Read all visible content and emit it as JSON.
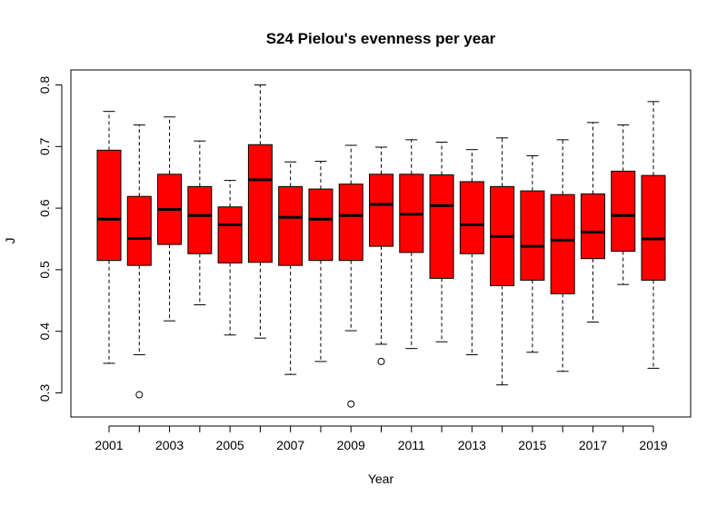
{
  "chart_data": {
    "type": "boxplot",
    "title": "S24 Pielou's evenness per year",
    "xlabel": "Year",
    "ylabel": "J",
    "ylim": [
      0.26,
      0.82
    ],
    "y_ticks": [
      0.3,
      0.4,
      0.5,
      0.6,
      0.7,
      0.8
    ],
    "y_tick_labels": [
      "0.3",
      "0.4",
      "0.5",
      "0.6",
      "0.7",
      "0.8"
    ],
    "x_tick_labels": [
      "2001",
      "2003",
      "2005",
      "2007",
      "2009",
      "2011",
      "2013",
      "2015",
      "2017",
      "2019"
    ],
    "box_fill": "#ff0000",
    "categories": [
      "2001",
      "2002",
      "2003",
      "2004",
      "2005",
      "2006",
      "2007",
      "2008",
      "2009",
      "2010",
      "2011",
      "2012",
      "2013",
      "2014",
      "2015",
      "2016",
      "2017",
      "2018",
      "2019"
    ],
    "boxes": [
      {
        "year": "2001",
        "min": 0.348,
        "q1": 0.515,
        "median": 0.582,
        "q3": 0.694,
        "max": 0.757,
        "outliers": []
      },
      {
        "year": "2002",
        "min": 0.362,
        "q1": 0.507,
        "median": 0.551,
        "q3": 0.619,
        "max": 0.735,
        "outliers": [
          0.297
        ]
      },
      {
        "year": "2003",
        "min": 0.417,
        "q1": 0.541,
        "median": 0.598,
        "q3": 0.655,
        "max": 0.748,
        "outliers": []
      },
      {
        "year": "2004",
        "min": 0.443,
        "q1": 0.526,
        "median": 0.588,
        "q3": 0.635,
        "max": 0.709,
        "outliers": []
      },
      {
        "year": "2005",
        "min": 0.394,
        "q1": 0.511,
        "median": 0.573,
        "q3": 0.602,
        "max": 0.645,
        "outliers": []
      },
      {
        "year": "2006",
        "min": 0.389,
        "q1": 0.512,
        "median": 0.646,
        "q3": 0.703,
        "max": 0.8,
        "outliers": []
      },
      {
        "year": "2007",
        "min": 0.33,
        "q1": 0.507,
        "median": 0.585,
        "q3": 0.635,
        "max": 0.675,
        "outliers": []
      },
      {
        "year": "2008",
        "min": 0.351,
        "q1": 0.515,
        "median": 0.582,
        "q3": 0.631,
        "max": 0.676,
        "outliers": []
      },
      {
        "year": "2009",
        "min": 0.401,
        "q1": 0.515,
        "median": 0.588,
        "q3": 0.639,
        "max": 0.702,
        "outliers": [
          0.282
        ]
      },
      {
        "year": "2010",
        "min": 0.379,
        "q1": 0.538,
        "median": 0.606,
        "q3": 0.655,
        "max": 0.699,
        "outliers": [
          0.351
        ]
      },
      {
        "year": "2011",
        "min": 0.372,
        "q1": 0.528,
        "median": 0.59,
        "q3": 0.655,
        "max": 0.711,
        "outliers": []
      },
      {
        "year": "2012",
        "min": 0.383,
        "q1": 0.486,
        "median": 0.604,
        "q3": 0.654,
        "max": 0.707,
        "outliers": []
      },
      {
        "year": "2013",
        "min": 0.362,
        "q1": 0.526,
        "median": 0.573,
        "q3": 0.643,
        "max": 0.695,
        "outliers": []
      },
      {
        "year": "2014",
        "min": 0.313,
        "q1": 0.474,
        "median": 0.554,
        "q3": 0.635,
        "max": 0.714,
        "outliers": []
      },
      {
        "year": "2015",
        "min": 0.366,
        "q1": 0.483,
        "median": 0.538,
        "q3": 0.628,
        "max": 0.685,
        "outliers": []
      },
      {
        "year": "2016",
        "min": 0.335,
        "q1": 0.461,
        "median": 0.548,
        "q3": 0.622,
        "max": 0.711,
        "outliers": []
      },
      {
        "year": "2017",
        "min": 0.415,
        "q1": 0.518,
        "median": 0.561,
        "q3": 0.623,
        "max": 0.739,
        "outliers": []
      },
      {
        "year": "2018",
        "min": 0.476,
        "q1": 0.53,
        "median": 0.588,
        "q3": 0.66,
        "max": 0.735,
        "outliers": []
      },
      {
        "year": "2019",
        "min": 0.34,
        "q1": 0.483,
        "median": 0.55,
        "q3": 0.653,
        "max": 0.773,
        "outliers": []
      }
    ]
  }
}
